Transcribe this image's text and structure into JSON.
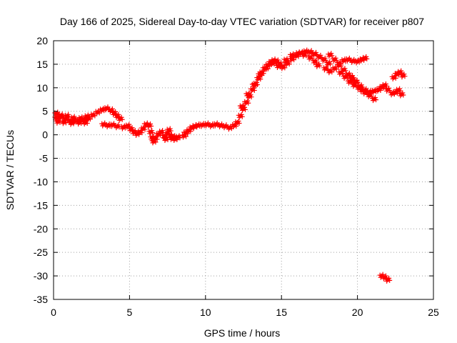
{
  "chart_data": {
    "type": "scatter",
    "title": "Day 166 of 2025, Sidereal Day-to-day VTEC variation (SDTVAR) for receiver p807",
    "xlabel": "GPS time / hours",
    "ylabel": "SDTVAR / TECUs",
    "xlim": [
      0,
      25
    ],
    "ylim": [
      -35,
      20
    ],
    "x_ticks": [
      0,
      5,
      10,
      15,
      20,
      25
    ],
    "y_ticks": [
      20,
      15,
      10,
      5,
      0,
      -5,
      -10,
      -15,
      -20,
      -25,
      -30,
      -35
    ],
    "grid": true,
    "marker": "+",
    "series": [
      {
        "name": "SDTVAR",
        "color": "#ff0000",
        "points": [
          [
            0.2,
            3.6
          ],
          [
            0.5,
            3.8
          ],
          [
            0.8,
            3.4
          ],
          [
            1.1,
            3.0
          ],
          [
            1.4,
            2.9
          ],
          [
            1.7,
            3.1
          ],
          [
            2.0,
            3.2
          ],
          [
            2.3,
            3.5
          ],
          [
            2.6,
            4.2
          ],
          [
            2.9,
            4.8
          ],
          [
            3.2,
            5.3
          ],
          [
            3.5,
            5.6
          ],
          [
            3.8,
            5.2
          ],
          [
            4.0,
            4.6
          ],
          [
            4.2,
            4.0
          ],
          [
            4.4,
            3.4
          ],
          [
            0.2,
            4.5
          ],
          [
            0.5,
            4.1
          ],
          [
            0.9,
            4.0
          ],
          [
            1.3,
            3.6
          ],
          [
            1.8,
            3.5
          ],
          [
            2.2,
            3.9
          ],
          [
            0.3,
            2.8
          ],
          [
            0.7,
            2.7
          ],
          [
            1.2,
            2.5
          ],
          [
            1.7,
            2.6
          ],
          [
            2.1,
            2.6
          ],
          [
            3.3,
            2.2
          ],
          [
            3.6,
            2.0
          ],
          [
            3.9,
            2.1
          ],
          [
            4.2,
            1.8
          ],
          [
            4.6,
            1.6
          ],
          [
            4.9,
            1.9
          ],
          [
            5.1,
            1.2
          ],
          [
            5.3,
            0.6
          ],
          [
            5.5,
            0.2
          ],
          [
            5.7,
            0.6
          ],
          [
            5.9,
            1.3
          ],
          [
            6.1,
            2.2
          ],
          [
            6.3,
            2.0
          ],
          [
            6.4,
            0.6
          ],
          [
            6.5,
            -0.6
          ],
          [
            6.6,
            -1.4
          ],
          [
            6.7,
            -0.8
          ],
          [
            6.9,
            0.1
          ],
          [
            7.1,
            0.6
          ],
          [
            7.3,
            -0.3
          ],
          [
            7.4,
            -0.9
          ],
          [
            7.5,
            0.3
          ],
          [
            7.6,
            1.0
          ],
          [
            7.7,
            -0.2
          ],
          [
            7.8,
            -0.7
          ],
          [
            7.9,
            -0.5
          ],
          [
            8.0,
            -0.9
          ],
          [
            8.2,
            -0.5
          ],
          [
            8.6,
            -0.2
          ],
          [
            8.7,
            0.4
          ],
          [
            8.9,
            0.9
          ],
          [
            9.1,
            1.5
          ],
          [
            9.3,
            1.8
          ],
          [
            9.5,
            2.0
          ],
          [
            9.8,
            2.1
          ],
          [
            10.1,
            2.2
          ],
          [
            10.4,
            2.0
          ],
          [
            10.7,
            2.2
          ],
          [
            11.0,
            2.0
          ],
          [
            11.3,
            1.8
          ],
          [
            11.6,
            1.5
          ],
          [
            11.9,
            2.0
          ],
          [
            12.1,
            2.6
          ],
          [
            12.3,
            4.0
          ],
          [
            12.5,
            5.5
          ],
          [
            12.7,
            6.9
          ],
          [
            12.9,
            8.2
          ],
          [
            13.1,
            9.6
          ],
          [
            13.3,
            10.8
          ],
          [
            13.5,
            12.0
          ],
          [
            13.7,
            13.2
          ],
          [
            13.9,
            14.1
          ],
          [
            14.1,
            14.8
          ],
          [
            14.3,
            15.4
          ],
          [
            14.5,
            15.8
          ],
          [
            14.7,
            15.6
          ],
          [
            14.9,
            15.0
          ],
          [
            12.4,
            6.0
          ],
          [
            12.8,
            8.6
          ],
          [
            13.2,
            10.6
          ],
          [
            13.6,
            12.8
          ],
          [
            14.0,
            14.2
          ],
          [
            14.4,
            15.2
          ],
          [
            14.8,
            14.6
          ],
          [
            15.1,
            14.4
          ],
          [
            15.4,
            15.2
          ],
          [
            15.7,
            16.1
          ],
          [
            16.0,
            16.8
          ],
          [
            16.3,
            17.4
          ],
          [
            16.6,
            17.7
          ],
          [
            16.9,
            17.6
          ],
          [
            17.2,
            17.2
          ],
          [
            17.5,
            16.6
          ],
          [
            17.8,
            16.0
          ],
          [
            18.1,
            15.2
          ],
          [
            15.3,
            15.9
          ],
          [
            15.7,
            16.9
          ],
          [
            16.1,
            17.3
          ],
          [
            16.5,
            17.0
          ],
          [
            16.9,
            16.4
          ],
          [
            17.2,
            15.6
          ],
          [
            17.4,
            14.8
          ],
          [
            17.9,
            14.1
          ],
          [
            18.2,
            13.5
          ],
          [
            18.5,
            14.1
          ],
          [
            18.8,
            15.2
          ],
          [
            19.1,
            15.8
          ],
          [
            19.4,
            16.0
          ],
          [
            19.7,
            15.7
          ],
          [
            20.0,
            15.6
          ],
          [
            20.3,
            16.0
          ],
          [
            20.5,
            16.3
          ],
          [
            18.2,
            17.0
          ],
          [
            18.5,
            16.0
          ],
          [
            18.8,
            14.8
          ],
          [
            19.1,
            13.8
          ],
          [
            19.4,
            12.8
          ],
          [
            19.7,
            11.8
          ],
          [
            19.9,
            11.2
          ],
          [
            18.9,
            13.2
          ],
          [
            19.2,
            12.3
          ],
          [
            19.5,
            11.3
          ],
          [
            19.8,
            10.6
          ],
          [
            20.1,
            10.0
          ],
          [
            20.3,
            9.5
          ],
          [
            20.5,
            9.0
          ],
          [
            20.8,
            8.4
          ],
          [
            21.1,
            7.6
          ],
          [
            19.6,
            12.3
          ],
          [
            19.9,
            11.3
          ],
          [
            20.2,
            10.3
          ],
          [
            20.5,
            9.5
          ],
          [
            20.8,
            9.1
          ],
          [
            21.1,
            9.3
          ],
          [
            21.4,
            9.6
          ],
          [
            21.6,
            10.1
          ],
          [
            21.8,
            10.5
          ],
          [
            22.0,
            9.6
          ],
          [
            22.3,
            8.8
          ],
          [
            22.5,
            9.0
          ],
          [
            22.7,
            9.5
          ],
          [
            22.9,
            8.6
          ],
          [
            22.4,
            12.2
          ],
          [
            22.6,
            12.9
          ],
          [
            22.8,
            13.3
          ],
          [
            23.0,
            12.6
          ],
          [
            21.6,
            -30.0
          ],
          [
            21.8,
            -30.3
          ],
          [
            22.0,
            -30.8
          ]
        ]
      }
    ]
  }
}
